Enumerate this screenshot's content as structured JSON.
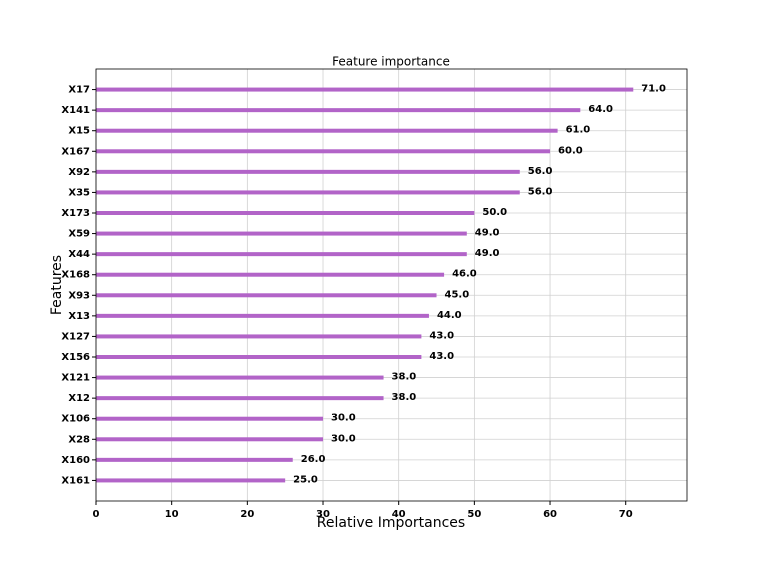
{
  "chart_data": {
    "type": "barh",
    "title": "Feature importance",
    "xlabel": "Relative Importances",
    "ylabel": "Features",
    "categories": [
      "X17",
      "X141",
      "X15",
      "X167",
      "X92",
      "X35",
      "X173",
      "X59",
      "X44",
      "X168",
      "X93",
      "X13",
      "X127",
      "X156",
      "X121",
      "X12",
      "X106",
      "X28",
      "X160",
      "X161"
    ],
    "values": [
      71,
      64,
      61,
      60,
      56,
      56,
      50,
      49,
      49,
      46,
      45,
      44,
      43,
      43,
      38,
      38,
      30,
      30,
      26,
      25
    ],
    "value_labels": [
      "71.0",
      "64.0",
      "61.0",
      "60.0",
      "56.0",
      "56.0",
      "50.0",
      "49.0",
      "49.0",
      "46.0",
      "45.0",
      "44.0",
      "43.0",
      "43.0",
      "38.0",
      "38.0",
      "30.0",
      "30.0",
      "26.0",
      "25.0"
    ],
    "color": "#b264c8",
    "xlim": [
      0,
      78.1
    ],
    "xticks": [
      0,
      10,
      20,
      30,
      40,
      50,
      60,
      70
    ],
    "grid": true
  }
}
